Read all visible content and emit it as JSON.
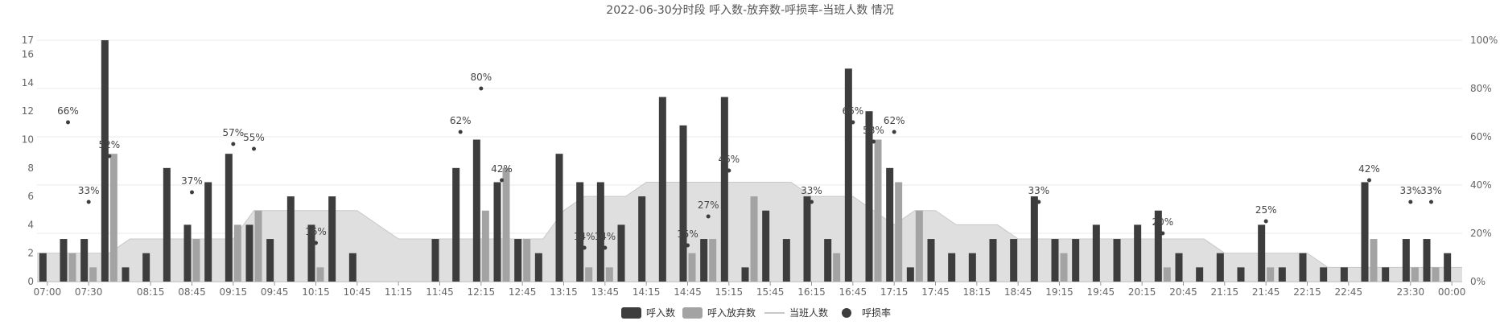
{
  "chart_data": {
    "type": "bar",
    "title": "2022-06-30分时段 呼入数-放弃数-呼损率-当班人数 情况",
    "x_tick_labels": [
      "07:00",
      "07:30",
      "08:15",
      "08:45",
      "09:15",
      "09:45",
      "10:15",
      "10:45",
      "11:15",
      "11:45",
      "12:15",
      "12:45",
      "13:15",
      "13:45",
      "14:15",
      "14:45",
      "15:15",
      "15:45",
      "16:15",
      "16:45",
      "17:15",
      "17:45",
      "18:15",
      "18:45",
      "19:15",
      "19:45",
      "20:15",
      "20:45",
      "21:15",
      "21:45",
      "22:15",
      "22:45",
      "23:30",
      "00:00"
    ],
    "y_left_ticks": [
      0,
      2,
      4,
      6,
      8,
      10,
      12,
      14,
      16,
      17
    ],
    "y_left_range": [
      0,
      17
    ],
    "y_right_ticks": [
      "0%",
      "20%",
      "40%",
      "60%",
      "80%",
      "100%"
    ],
    "y_right_range": [
      0,
      100
    ],
    "legend": [
      {
        "name": "呼入数",
        "color": "#3d3d3d",
        "kind": "bar"
      },
      {
        "name": "呼入放弃数",
        "color": "#a3a3a3",
        "kind": "bar"
      },
      {
        "name": "当班人数",
        "color": "#c8c8c8",
        "kind": "line"
      },
      {
        "name": "呼损率",
        "color": "#3d3d3d",
        "kind": "dot"
      }
    ],
    "legend_position": "bottom-center",
    "grid": true,
    "categories": [
      "07:00",
      "07:15",
      "07:30",
      "07:45",
      "08:00",
      "08:15",
      "08:30",
      "08:45",
      "09:00",
      "09:15",
      "09:30",
      "09:45",
      "10:00",
      "10:15",
      "10:30",
      "10:45",
      "11:00",
      "11:15",
      "11:30",
      "11:45",
      "12:00",
      "12:15",
      "12:30",
      "12:45",
      "13:00",
      "13:15",
      "13:30",
      "13:45",
      "14:00",
      "14:15",
      "14:30",
      "14:45",
      "15:00",
      "15:15",
      "15:30",
      "15:45",
      "16:00",
      "16:15",
      "16:30",
      "16:45",
      "17:00",
      "17:15",
      "17:30",
      "17:45",
      "18:00",
      "18:15",
      "18:30",
      "18:45",
      "19:00",
      "19:15",
      "19:30",
      "19:45",
      "20:00",
      "20:15",
      "20:30",
      "20:45",
      "21:00",
      "21:15",
      "21:30",
      "21:45",
      "22:00",
      "22:15",
      "22:30",
      "22:45",
      "23:00",
      "23:15",
      "23:30",
      "23:45",
      "00:00"
    ],
    "series": [
      {
        "name": "呼入数",
        "values": [
          2,
          3,
          3,
          17,
          1,
          2,
          8,
          4,
          7,
          9,
          4,
          3,
          6,
          4,
          6,
          2,
          0,
          0,
          0,
          3,
          8,
          10,
          7,
          3,
          2,
          9,
          7,
          7,
          4,
          6,
          13,
          11,
          3,
          13,
          1,
          5,
          3,
          6,
          3,
          15,
          12,
          8,
          1,
          3,
          2,
          2,
          3,
          3,
          6,
          3,
          3,
          4,
          3,
          4,
          5,
          2,
          1,
          2,
          1,
          4,
          1,
          2,
          1,
          1,
          7,
          1,
          3,
          3,
          2
        ]
      },
      {
        "name": "呼入放弃数",
        "values": [
          0,
          2,
          1,
          9,
          0,
          0,
          0,
          3,
          0,
          4,
          5,
          0,
          0,
          1,
          0,
          0,
          0,
          0,
          0,
          0,
          0,
          5,
          8,
          3,
          0,
          0,
          1,
          1,
          0,
          0,
          0,
          2,
          3,
          0,
          6,
          0,
          0,
          0,
          2,
          0,
          10,
          7,
          5,
          0,
          0,
          0,
          0,
          0,
          0,
          2,
          0,
          0,
          0,
          0,
          1,
          0,
          0,
          0,
          0,
          1,
          0,
          0,
          0,
          0,
          3,
          0,
          1,
          1,
          0
        ]
      },
      {
        "name": "当班人数",
        "values": [
          2,
          2,
          2,
          2,
          3,
          3,
          3,
          3,
          3,
          3,
          5,
          5,
          5,
          5,
          5,
          5,
          4,
          3,
          3,
          3,
          3,
          3,
          3,
          3,
          3,
          5,
          6,
          6,
          6,
          7,
          7,
          7,
          7,
          7,
          7,
          7,
          7,
          6,
          6,
          6,
          5,
          4,
          5,
          5,
          4,
          4,
          4,
          3,
          3,
          3,
          3,
          3,
          3,
          3,
          3,
          3,
          3,
          2,
          2,
          2,
          2,
          2,
          1,
          1,
          1,
          1,
          1,
          1,
          1
        ]
      },
      {
        "name": "呼损率",
        "values": [
          null,
          66,
          33,
          52,
          null,
          null,
          null,
          37,
          null,
          57,
          55,
          null,
          null,
          16,
          null,
          null,
          null,
          null,
          null,
          null,
          62,
          80,
          42,
          null,
          null,
          null,
          14,
          14,
          null,
          null,
          null,
          15,
          27,
          46,
          null,
          null,
          null,
          33,
          null,
          66,
          58,
          62,
          null,
          null,
          null,
          null,
          null,
          null,
          33,
          null,
          null,
          null,
          null,
          null,
          20,
          null,
          null,
          null,
          null,
          25,
          null,
          null,
          null,
          null,
          42,
          null,
          33,
          33,
          null
        ]
      }
    ]
  }
}
